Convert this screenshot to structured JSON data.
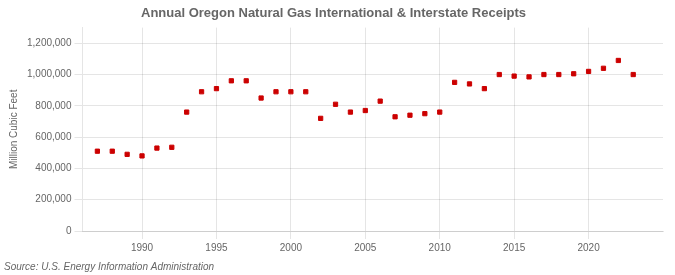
{
  "chart_data": {
    "type": "scatter",
    "title": "Annual Oregon Natural Gas International & Interstate Receipts",
    "ylabel": "Million Cubic Feet",
    "source": "Source: U.S. Energy Information Administration",
    "color": "#cc0000",
    "marker": "square",
    "grid": true,
    "legend": false,
    "xlim": [
      1986,
      2025
    ],
    "ylim": [
      0,
      1300000
    ],
    "xticks": [
      1990,
      1995,
      2000,
      2005,
      2010,
      2015,
      2020
    ],
    "yticks": [
      0,
      {
        "value": 200000,
        "label": "200,000"
      },
      {
        "value": 400000,
        "label": "400,000"
      },
      {
        "value": 600000,
        "label": "600,000"
      },
      {
        "value": 800000,
        "label": "800,000"
      },
      {
        "value": 1000000,
        "label": "1,000,000"
      },
      {
        "value": 1200000,
        "label": "1,200,000"
      }
    ],
    "x": [
      1987,
      1988,
      1989,
      1990,
      1991,
      1992,
      1993,
      1994,
      1995,
      1996,
      1997,
      1998,
      1999,
      2000,
      2001,
      2002,
      2003,
      2004,
      2005,
      2006,
      2007,
      2008,
      2009,
      2010,
      2011,
      2012,
      2013,
      2014,
      2015,
      2016,
      2017,
      2018,
      2019,
      2020,
      2021,
      2022,
      2023
    ],
    "values": [
      510000,
      510000,
      490000,
      480000,
      530000,
      535000,
      760000,
      890000,
      910000,
      960000,
      960000,
      850000,
      890000,
      890000,
      890000,
      720000,
      810000,
      760000,
      770000,
      830000,
      730000,
      740000,
      750000,
      760000,
      950000,
      940000,
      910000,
      1000000,
      990000,
      985000,
      1000000,
      1000000,
      1005000,
      1020000,
      1040000,
      1090000,
      1000000
    ]
  }
}
